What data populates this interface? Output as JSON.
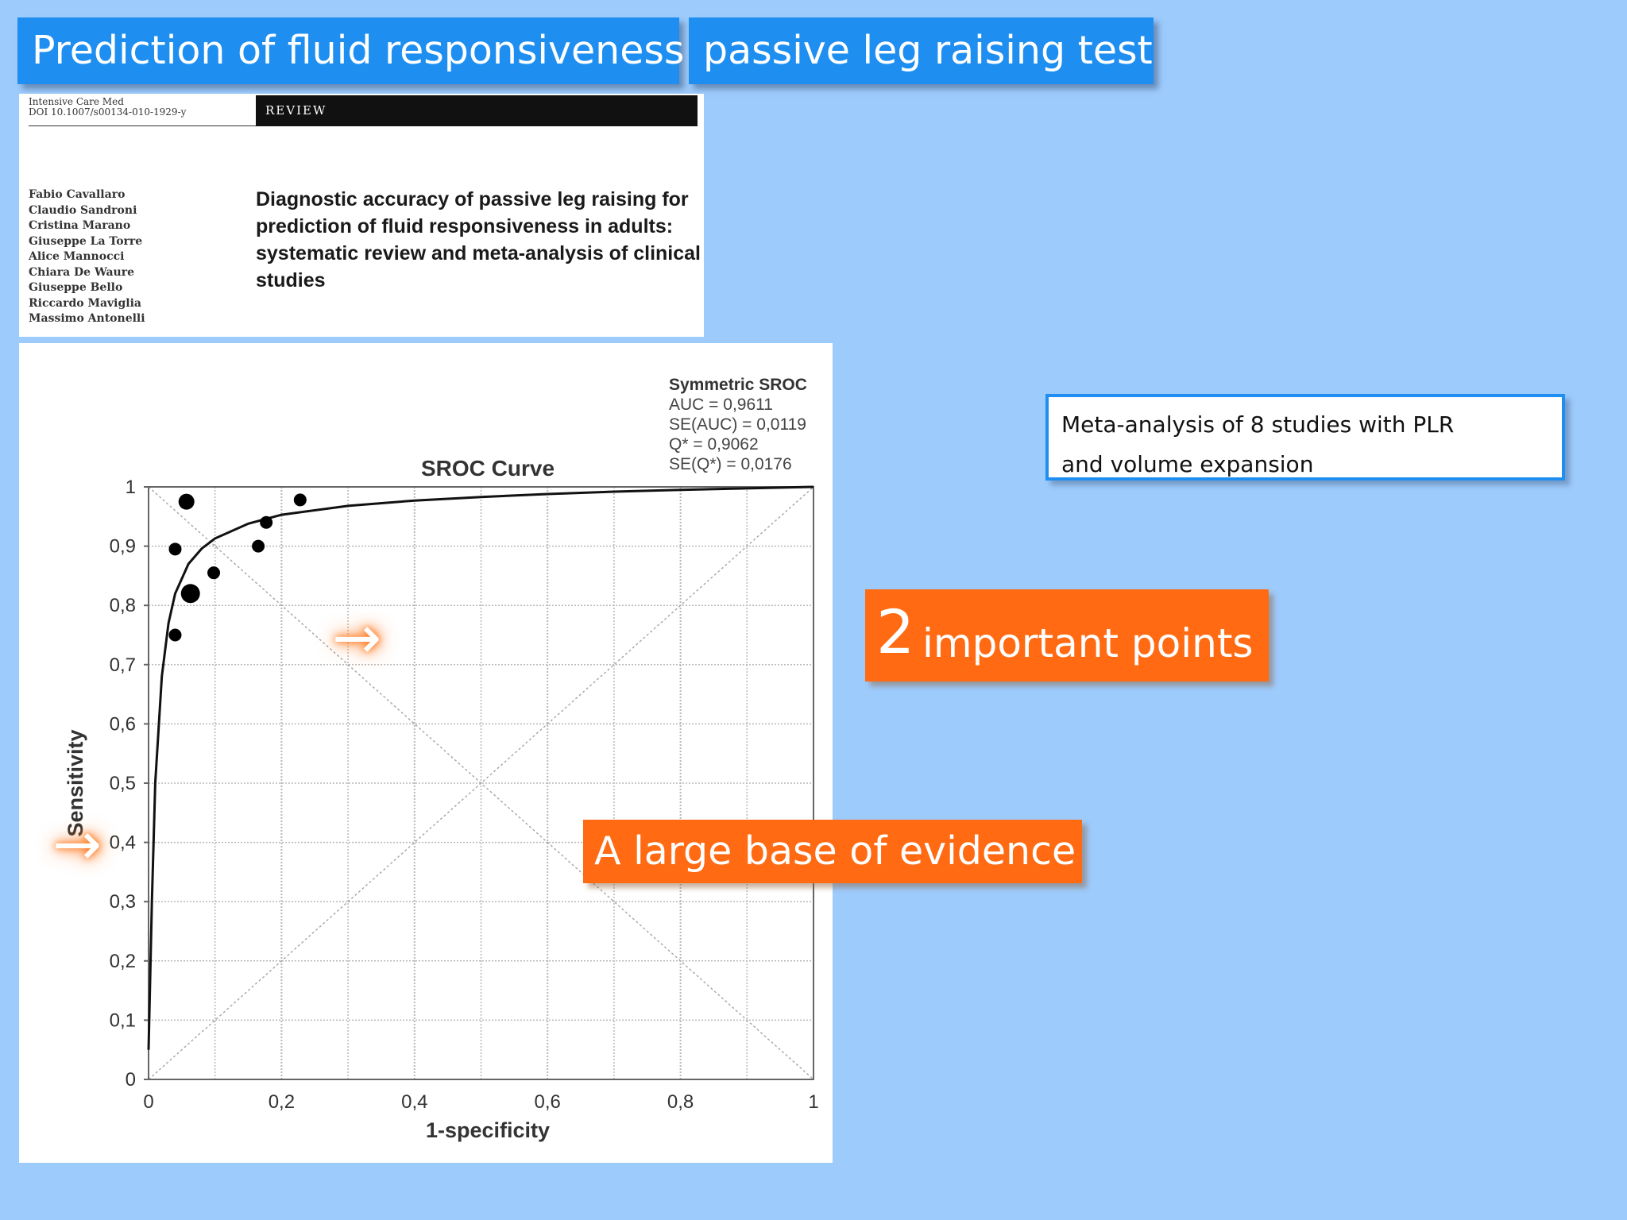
{
  "slide": {
    "title_left": "Prediction of fluid responsiveness",
    "title_right": "passive leg raising test"
  },
  "paper": {
    "journal_line1": "Intensive Care Med",
    "journal_line2": "DOI 10.1007/s00134-010-1929-y",
    "review_label": "REVIEW",
    "authors": [
      "Fabio Cavallaro",
      "Claudio Sandroni",
      "Cristina Marano",
      "Giuseppe La Torre",
      "Alice Mannocci",
      "Chiara De Waure",
      "Giuseppe Bello",
      "Riccardo Maviglia",
      "Massimo Antonelli"
    ],
    "title": "Diagnostic accuracy of passive leg raising for prediction of fluid responsiveness in adults: systematic review and meta-analysis of clinical studies"
  },
  "chart_data": {
    "type": "scatter",
    "title": "SROC Curve",
    "xlabel": "1-specificity",
    "ylabel": "Sensitivity",
    "xlim": [
      0,
      1
    ],
    "ylim": [
      0,
      1
    ],
    "grid": true,
    "x_ticks": [
      "0",
      "0,2",
      "0,4",
      "0,6",
      "0,8",
      "1"
    ],
    "y_ticks": [
      "0",
      "0,1",
      "0,2",
      "0,3",
      "0,4",
      "0,5",
      "0,6",
      "0,7",
      "0,8",
      "0,9",
      "1"
    ],
    "stats": {
      "heading": "Symmetric SROC",
      "lines": [
        "AUC = 0,9611",
        "SE(AUC) = 0,0119",
        "Q* = 0,9062",
        "SE(Q*) = 0,0176"
      ]
    },
    "studies": [
      {
        "x": 0.057,
        "y": 0.975,
        "size": "medium"
      },
      {
        "x": 0.228,
        "y": 0.978,
        "size": "small"
      },
      {
        "x": 0.177,
        "y": 0.94,
        "size": "small"
      },
      {
        "x": 0.04,
        "y": 0.895,
        "size": "small"
      },
      {
        "x": 0.165,
        "y": 0.9,
        "size": "small"
      },
      {
        "x": 0.098,
        "y": 0.855,
        "size": "small"
      },
      {
        "x": 0.063,
        "y": 0.82,
        "size": "large"
      },
      {
        "x": 0.04,
        "y": 0.75,
        "size": "small"
      }
    ],
    "sroc_curve": [
      {
        "x": 0.0,
        "y": 0.05
      },
      {
        "x": 0.005,
        "y": 0.3
      },
      {
        "x": 0.01,
        "y": 0.5
      },
      {
        "x": 0.02,
        "y": 0.68
      },
      {
        "x": 0.03,
        "y": 0.77
      },
      {
        "x": 0.04,
        "y": 0.82
      },
      {
        "x": 0.06,
        "y": 0.87
      },
      {
        "x": 0.08,
        "y": 0.896
      },
      {
        "x": 0.1,
        "y": 0.913
      },
      {
        "x": 0.15,
        "y": 0.938
      },
      {
        "x": 0.2,
        "y": 0.953
      },
      {
        "x": 0.3,
        "y": 0.968
      },
      {
        "x": 0.4,
        "y": 0.977
      },
      {
        "x": 0.5,
        "y": 0.983
      },
      {
        "x": 0.6,
        "y": 0.988
      },
      {
        "x": 0.7,
        "y": 0.992
      },
      {
        "x": 0.8,
        "y": 0.995
      },
      {
        "x": 1.0,
        "y": 1.0
      }
    ]
  },
  "meta_box": {
    "line1": "Meta-analysis of 8 studies with PLR",
    "line2": "and volume expansion"
  },
  "important": {
    "number": "2",
    "text": "important points"
  },
  "evidence": "A  large base of evidence",
  "arrow_glyph": "→"
}
